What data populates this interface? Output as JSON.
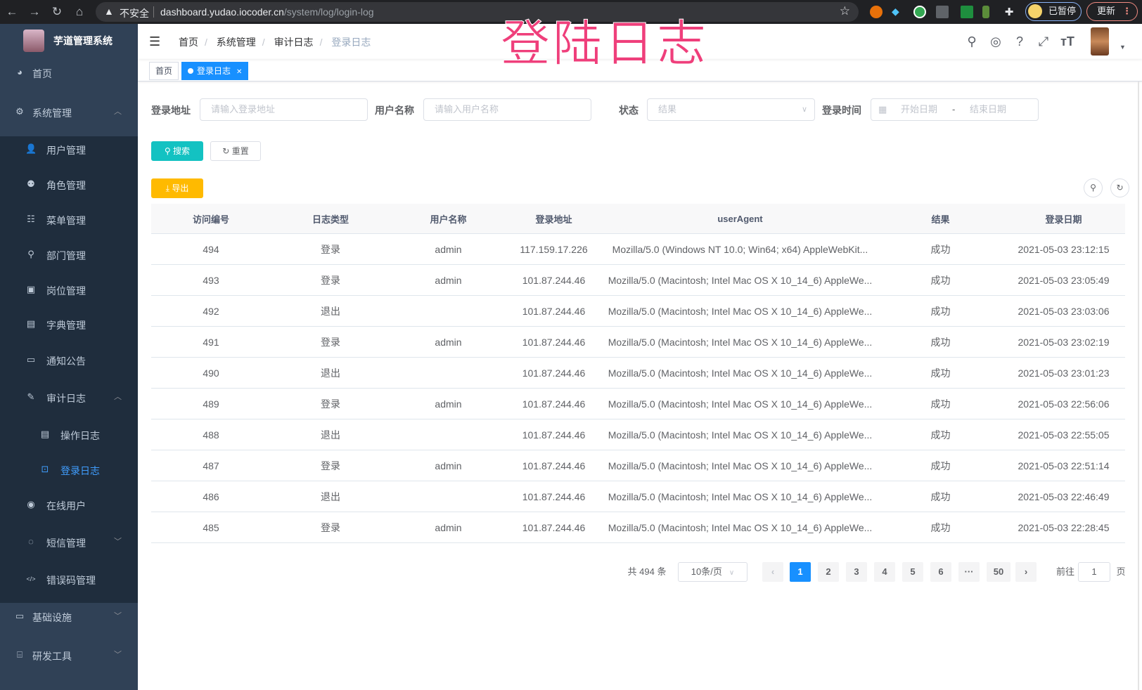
{
  "browser": {
    "nav_icons": [
      "back-icon",
      "forward-icon",
      "reload-icon",
      "home-icon"
    ],
    "insecure_label": "不安全",
    "url_host": "dashboard.yudao.iocoder.cn",
    "url_path": "/system/log/login-log",
    "profile_label": "已暂停",
    "update_label": "更新"
  },
  "overlay_title": "登陆日志",
  "sidebar": {
    "title": "芋道管理系统",
    "items": [
      {
        "label": "首页",
        "icon": "dashboard-icon",
        "level": 0
      },
      {
        "label": "系统管理",
        "icon": "gear-icon",
        "level": 0,
        "expanded": true
      },
      {
        "label": "用户管理",
        "icon": "user-icon",
        "level": 1
      },
      {
        "label": "角色管理",
        "icon": "role-icon",
        "level": 1
      },
      {
        "label": "菜单管理",
        "icon": "menu-tree-icon",
        "level": 1
      },
      {
        "label": "部门管理",
        "icon": "org-chart-icon",
        "level": 1
      },
      {
        "label": "岗位管理",
        "icon": "post-icon",
        "level": 1
      },
      {
        "label": "字典管理",
        "icon": "dictionary-icon",
        "level": 1
      },
      {
        "label": "通知公告",
        "icon": "message-icon",
        "level": 1
      },
      {
        "label": "审计日志",
        "icon": "edit-log-icon",
        "level": 1,
        "expanded": true
      },
      {
        "label": "操作日志",
        "icon": "form-icon",
        "level": 2
      },
      {
        "label": "登录日志",
        "icon": "logininfor-icon",
        "level": 2,
        "active": true
      },
      {
        "label": "在线用户",
        "icon": "online-icon",
        "level": 1
      },
      {
        "label": "短信管理",
        "icon": "validCode-icon",
        "level": 1,
        "collapsed": true
      },
      {
        "label": "错误码管理",
        "icon": "code-icon",
        "level": 1
      },
      {
        "label": "基础设施",
        "icon": "monitor-icon",
        "level": 0,
        "collapsed": true
      },
      {
        "label": "研发工具",
        "icon": "tool-icon",
        "level": 0,
        "collapsed": true
      }
    ]
  },
  "navbar": {
    "breadcrumb": [
      "首页",
      "系统管理",
      "审计日志",
      "登录日志"
    ],
    "tools": [
      "search-icon",
      "github-icon",
      "question-icon",
      "fullscreen-icon",
      "font-size-icon"
    ]
  },
  "tags": [
    {
      "label": "首页"
    },
    {
      "label": "登录日志",
      "active": true
    }
  ],
  "filters": {
    "login_address": {
      "label": "登录地址",
      "placeholder": "请输入登录地址"
    },
    "username": {
      "label": "用户名称",
      "placeholder": "请输入用户名称"
    },
    "status": {
      "label": "状态",
      "placeholder": "结果"
    },
    "login_time": {
      "label": "登录时间",
      "start_placeholder": "开始日期",
      "separator": "-",
      "end_placeholder": "结束日期"
    },
    "search_label": "搜索",
    "reset_label": "重置",
    "export_label": "导出"
  },
  "colors": {
    "primary": "#1890ff",
    "search": "#13c2c2",
    "export": "#ffba00",
    "sidebar": "#304156",
    "overlay": "#ef3f7b"
  },
  "table": {
    "columns": [
      "访问编号",
      "日志类型",
      "用户名称",
      "登录地址",
      "userAgent",
      "结果",
      "登录日期"
    ],
    "rows": [
      [
        "494",
        "登录",
        "admin",
        "117.159.17.226",
        "Mozilla/5.0 (Windows NT 10.0; Win64; x64) AppleWebKit...",
        "成功",
        "2021-05-03 23:12:15"
      ],
      [
        "493",
        "登录",
        "admin",
        "101.87.244.46",
        "Mozilla/5.0 (Macintosh; Intel Mac OS X 10_14_6) AppleWe...",
        "成功",
        "2021-05-03 23:05:49"
      ],
      [
        "492",
        "退出",
        "",
        "101.87.244.46",
        "Mozilla/5.0 (Macintosh; Intel Mac OS X 10_14_6) AppleWe...",
        "成功",
        "2021-05-03 23:03:06"
      ],
      [
        "491",
        "登录",
        "admin",
        "101.87.244.46",
        "Mozilla/5.0 (Macintosh; Intel Mac OS X 10_14_6) AppleWe...",
        "成功",
        "2021-05-03 23:02:19"
      ],
      [
        "490",
        "退出",
        "",
        "101.87.244.46",
        "Mozilla/5.0 (Macintosh; Intel Mac OS X 10_14_6) AppleWe...",
        "成功",
        "2021-05-03 23:01:23"
      ],
      [
        "489",
        "登录",
        "admin",
        "101.87.244.46",
        "Mozilla/5.0 (Macintosh; Intel Mac OS X 10_14_6) AppleWe...",
        "成功",
        "2021-05-03 22:56:06"
      ],
      [
        "488",
        "退出",
        "",
        "101.87.244.46",
        "Mozilla/5.0 (Macintosh; Intel Mac OS X 10_14_6) AppleWe...",
        "成功",
        "2021-05-03 22:55:05"
      ],
      [
        "487",
        "登录",
        "admin",
        "101.87.244.46",
        "Mozilla/5.0 (Macintosh; Intel Mac OS X 10_14_6) AppleWe...",
        "成功",
        "2021-05-03 22:51:14"
      ],
      [
        "486",
        "退出",
        "",
        "101.87.244.46",
        "Mozilla/5.0 (Macintosh; Intel Mac OS X 10_14_6) AppleWe...",
        "成功",
        "2021-05-03 22:46:49"
      ],
      [
        "485",
        "登录",
        "admin",
        "101.87.244.46",
        "Mozilla/5.0 (Macintosh; Intel Mac OS X 10_14_6) AppleWe...",
        "成功",
        "2021-05-03 22:28:45"
      ]
    ]
  },
  "pagination": {
    "total_text": "共 494 条",
    "page_size": "10条/页",
    "pages": [
      "1",
      "2",
      "3",
      "4",
      "5",
      "6",
      "···",
      "50"
    ],
    "current_page": "1",
    "goto_label": "前往",
    "goto_value": "1",
    "goto_suffix": "页"
  }
}
